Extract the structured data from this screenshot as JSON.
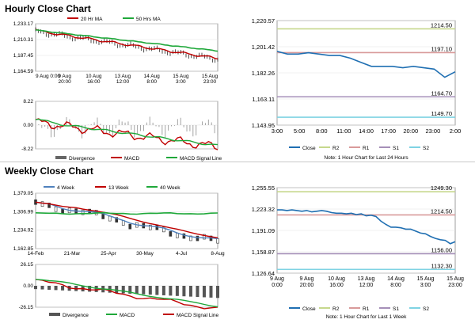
{
  "hourly": {
    "title": "Hourly Close Chart",
    "price": {
      "legend": [
        {
          "name": "20 Hr MA",
          "color": "#c00000"
        },
        {
          "name": "50 Hrs MA",
          "color": "#1fa83a"
        }
      ],
      "y_ticks": [
        "1,233.17",
        "1,210.31",
        "1,187.45",
        "1,164.59"
      ],
      "x_ticks": [
        [
          "9 Aug 0:00",
          ""
        ],
        [
          "9 Aug",
          "20:00"
        ],
        [
          "10 Aug",
          "16:00"
        ],
        [
          "13 Aug",
          "12:00"
        ],
        [
          "14 Aug",
          "8:00"
        ],
        [
          "15 Aug",
          "3:00"
        ],
        [
          "15 Aug",
          "23:00"
        ]
      ]
    },
    "macd": {
      "y_ticks": [
        "8.22",
        "0.00",
        "-8.22"
      ],
      "legend": [
        "Divergence",
        "MACD",
        "MACD Signal Line"
      ]
    },
    "right": {
      "y_ticks": [
        "1,220.57",
        "1,201.42",
        "1,182.26",
        "1,163.11",
        "1,143.95"
      ],
      "x_ticks": [
        "3:00",
        "5:00",
        "8:00",
        "11:00",
        "14:00",
        "17:00",
        "20:00",
        "23:00",
        "2:00"
      ],
      "levels": [
        {
          "name": "R2",
          "label": "1214.50",
          "value": 1214.5,
          "color": "#c6d88c"
        },
        {
          "name": "R1",
          "label": "1197.10",
          "value": 1197.1,
          "color": "#d99a9a"
        },
        {
          "name": "S1",
          "label": "1164.70",
          "value": 1164.7,
          "color": "#a58fb8"
        },
        {
          "name": "S2",
          "label": "1149.70",
          "value": 1149.7,
          "color": "#7fd3e3"
        }
      ],
      "legend": [
        "Close",
        "R2",
        "R1",
        "S1",
        "S2"
      ],
      "note": "Note: 1 Hour Chart for Last 24 Hours"
    }
  },
  "weekly": {
    "title": "Weekly Close Chart",
    "price": {
      "legend": [
        {
          "name": "4 Week",
          "color": "#4f81bd"
        },
        {
          "name": "13 Week",
          "color": "#c00000"
        },
        {
          "name": "40 Week",
          "color": "#1fa83a"
        }
      ],
      "y_ticks": [
        "1,379.05",
        "1,306.99",
        "1,234.92",
        "1,162.85"
      ],
      "x_ticks": [
        "14-Feb",
        "21-Mar",
        "25-Apr",
        "30-May",
        "4-Jul",
        "8-Aug"
      ]
    },
    "macd": {
      "y_ticks": [
        "26.15",
        "0.00",
        "-26.15"
      ],
      "legend": [
        "Divergence",
        "MACD",
        "MACD Signal Line"
      ]
    },
    "right": {
      "y_ticks": [
        "1,255.55",
        "1,223.32",
        "1,191.09",
        "1,158.87",
        "1,126.64"
      ],
      "x_ticks": [
        [
          "9 Aug",
          "0:00"
        ],
        [
          "9 Aug",
          "20:00"
        ],
        [
          "10 Aug",
          "16:00"
        ],
        [
          "13 Aug",
          "12:00"
        ],
        [
          "14 Aug",
          "8:00"
        ],
        [
          "15 Aug",
          "3:00"
        ],
        [
          "15 Aug",
          "23:00"
        ]
      ],
      "levels": [
        {
          "name": "R2",
          "label": "1249.30",
          "value": 1249.3,
          "color": "#c6d88c"
        },
        {
          "name": "R1",
          "label": "1214.50",
          "value": 1214.5,
          "color": "#d99a9a"
        },
        {
          "name": "S1",
          "label": "1156.00",
          "value": 1156.0,
          "color": "#a58fb8"
        },
        {
          "name": "S2",
          "label": "1132.30",
          "value": 1132.3,
          "color": "#7fd3e3"
        }
      ],
      "legend": [
        "Close",
        "R2",
        "R1",
        "S1",
        "S2"
      ],
      "note": "Note: 1 Hour Chart for Last 1 Week"
    }
  },
  "chart_data": [
    {
      "type": "line",
      "series": [
        {
          "name": "Close",
          "values": [
            1198,
            1196,
            1196,
            1197,
            1196,
            1195,
            1195,
            1193,
            1190,
            1187,
            1187,
            1187,
            1186,
            1187,
            1186,
            1185,
            1179,
            1183
          ]
        }
      ],
      "ylim": [
        1143.95,
        1220.57
      ]
    },
    {
      "type": "line",
      "series": [
        {
          "name": "Close",
          "values": [
            1222,
            1222,
            1221,
            1222,
            1221,
            1220,
            1221,
            1219,
            1220,
            1221,
            1220,
            1218,
            1217,
            1217,
            1216,
            1217,
            1215,
            1216,
            1213,
            1214,
            1212,
            1205,
            1200,
            1196,
            1196,
            1195,
            1193,
            1193,
            1190,
            1187,
            1186,
            1182,
            1179,
            1177,
            1176,
            1171,
            1174
          ]
        }
      ],
      "ylim": [
        1126.64,
        1255.55
      ]
    }
  ]
}
